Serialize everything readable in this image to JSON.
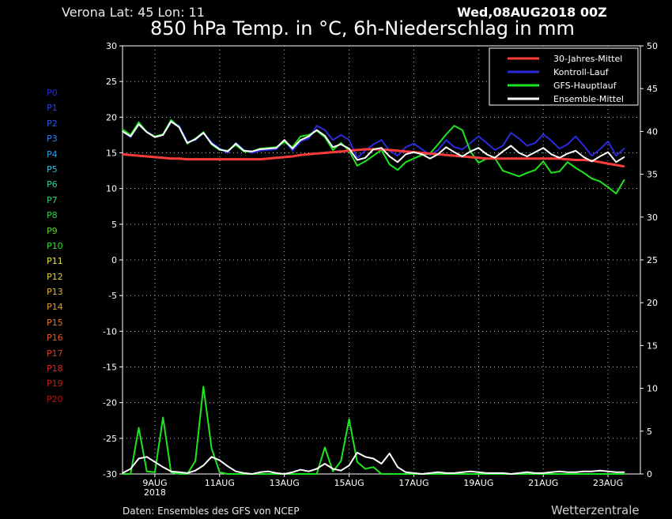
{
  "header": {
    "location": "Verona   Lat: 45 Lon: 11",
    "run": "Wed,08AUG2018 00Z",
    "title": "850 hPa Temp. in °C, 6h-Niederschlag in mm"
  },
  "footer": {
    "source": "Daten: Ensembles des GFS von NCEP",
    "brand": "Wetterzentrale"
  },
  "members": [
    {
      "label": "P0",
      "color": "#2a2adc"
    },
    {
      "label": "P1",
      "color": "#2a3ae6"
    },
    {
      "label": "P2",
      "color": "#2a5ae6"
    },
    {
      "label": "P3",
      "color": "#2a82e6"
    },
    {
      "label": "P4",
      "color": "#2aa0e6"
    },
    {
      "label": "P5",
      "color": "#2ac0d2"
    },
    {
      "label": "P6",
      "color": "#2ad2a0"
    },
    {
      "label": "P7",
      "color": "#2ad278"
    },
    {
      "label": "P8",
      "color": "#2ad250"
    },
    {
      "label": "P9",
      "color": "#5ad22a"
    },
    {
      "label": "P10",
      "color": "#2ae62a"
    },
    {
      "label": "P11",
      "color": "#e6e62a"
    },
    {
      "label": "P12",
      "color": "#e6d22a"
    },
    {
      "label": "P13",
      "color": "#e6b42a"
    },
    {
      "label": "P14",
      "color": "#e6962a"
    },
    {
      "label": "P15",
      "color": "#e6782a"
    },
    {
      "label": "P16",
      "color": "#e65a2a"
    },
    {
      "label": "P17",
      "color": "#dc3c2a"
    },
    {
      "label": "P18",
      "color": "#d22a2a"
    },
    {
      "label": "P19",
      "color": "#c81e1e"
    },
    {
      "label": "P20",
      "color": "#b41414"
    }
  ],
  "chart_data": {
    "type": "line",
    "x_ticks": [
      "9AUG",
      "11AUG",
      "13AUG",
      "15AUG",
      "17AUG",
      "19AUG",
      "21AUG",
      "23AUG"
    ],
    "x_tick_year": "2018",
    "left_axis": {
      "ylim": [
        -30,
        30
      ],
      "ticks": [
        30,
        25,
        20,
        15,
        10,
        5,
        0,
        -5,
        -10,
        -15,
        -20,
        -25,
        -30
      ]
    },
    "right_axis": {
      "ylim": [
        0,
        50
      ],
      "ticks": [
        50,
        45,
        40,
        35,
        30,
        25,
        20,
        15,
        10,
        5,
        0
      ]
    },
    "grid": true,
    "legend_position": "top-right",
    "x_start": "2018-08-08 00Z",
    "x_step_hours": 6,
    "series": [
      {
        "name": "30-Jahres-Mittel",
        "color": "#ff3c3c",
        "axis": "left",
        "values": [
          14.8,
          14.7,
          14.6,
          14.5,
          14.4,
          14.3,
          14.2,
          14.2,
          14.1,
          14.1,
          14.1,
          14.1,
          14.1,
          14.1,
          14.1,
          14.1,
          14.1,
          14.1,
          14.2,
          14.3,
          14.4,
          14.5,
          14.7,
          14.8,
          14.9,
          15.0,
          15.1,
          15.2,
          15.3,
          15.4,
          15.5,
          15.5,
          15.5,
          15.4,
          15.3,
          15.2,
          15.1,
          15.0,
          14.9,
          14.8,
          14.7,
          14.6,
          14.5,
          14.4,
          14.3,
          14.2,
          14.2,
          14.2,
          14.2,
          14.2,
          14.2,
          14.2,
          14.2,
          14.2,
          14.2,
          14.1,
          14.0,
          14.0,
          13.9,
          13.7,
          13.5,
          13.3,
          13.1
        ]
      },
      {
        "name": "Kontroll-Lauf",
        "color": "#2a2adc",
        "axis": "left",
        "values": [
          18.0,
          17.2,
          19.0,
          18.0,
          17.3,
          17.5,
          19.3,
          18.8,
          16.5,
          16.8,
          17.8,
          16.5,
          15.6,
          15.0,
          16.4,
          15.4,
          15.0,
          15.3,
          15.4,
          15.5,
          16.7,
          15.3,
          16.6,
          17.0,
          18.8,
          18.2,
          16.8,
          17.5,
          16.8,
          14.3,
          15.3,
          16.2,
          16.8,
          15.3,
          14.6,
          15.8,
          16.3,
          15.5,
          14.7,
          15.4,
          16.8,
          15.8,
          15.5,
          16.4,
          17.3,
          16.4,
          15.4,
          16.0,
          17.8,
          17.0,
          16.0,
          16.4,
          17.6,
          16.7,
          15.6,
          16.2,
          17.3,
          16.0,
          14.6,
          15.5,
          16.6,
          14.6,
          15.6
        ]
      },
      {
        "name": "GFS-Hauptlauf",
        "color": "#1ee61e",
        "axis": "left",
        "values": [
          18.3,
          17.5,
          19.3,
          17.9,
          17.3,
          17.6,
          19.6,
          18.6,
          16.3,
          17.0,
          17.9,
          16.2,
          15.4,
          15.3,
          16.1,
          15.2,
          15.2,
          15.6,
          15.7,
          15.8,
          16.5,
          15.8,
          17.3,
          17.5,
          18.1,
          17.2,
          15.4,
          16.4,
          15.3,
          13.2,
          13.8,
          14.6,
          15.4,
          13.4,
          12.6,
          13.7,
          14.2,
          14.7,
          14.9,
          16.2,
          17.6,
          18.8,
          18.2,
          15.2,
          13.6,
          14.2,
          14.3,
          12.5,
          12.1,
          11.7,
          12.2,
          12.6,
          13.8,
          12.2,
          12.4,
          13.7,
          12.9,
          12.2,
          11.4,
          11.0,
          10.2,
          9.3,
          11.2
        ]
      },
      {
        "name": "Ensemble-Mittel",
        "color": "#ffffff",
        "axis": "left",
        "values": [
          18.0,
          17.3,
          19.0,
          17.9,
          17.2,
          17.5,
          19.4,
          18.6,
          16.4,
          16.9,
          17.8,
          16.3,
          15.5,
          15.2,
          16.3,
          15.3,
          15.2,
          15.5,
          15.6,
          15.7,
          16.8,
          15.6,
          16.8,
          17.3,
          18.2,
          17.4,
          15.8,
          16.2,
          15.6,
          14.0,
          14.3,
          15.5,
          15.7,
          14.5,
          13.7,
          14.8,
          15.1,
          14.8,
          14.2,
          14.8,
          15.8,
          15.1,
          14.5,
          15.2,
          15.7,
          14.8,
          14.3,
          15.2,
          16.0,
          15.0,
          14.5,
          15.1,
          15.7,
          14.8,
          14.3,
          14.9,
          15.3,
          14.4,
          13.8,
          14.5,
          15.1,
          13.7,
          14.4
        ]
      },
      {
        "name": "Niederschlag Mittel",
        "color": "#ffffff",
        "axis": "right",
        "values": [
          0.1,
          0.6,
          1.8,
          2.0,
          1.4,
          0.8,
          0.3,
          0.2,
          0.1,
          0.4,
          1.0,
          2.0,
          1.6,
          0.9,
          0.3,
          0.1,
          0.0,
          0.2,
          0.3,
          0.1,
          0.0,
          0.2,
          0.5,
          0.3,
          0.6,
          1.2,
          0.6,
          0.4,
          1.0,
          2.5,
          2.0,
          1.8,
          1.2,
          2.4,
          0.8,
          0.2,
          0.1,
          0.0,
          0.1,
          0.2,
          0.1,
          0.1,
          0.2,
          0.3,
          0.2,
          0.1,
          0.1,
          0.1,
          0.0,
          0.1,
          0.2,
          0.1,
          0.1,
          0.2,
          0.3,
          0.2,
          0.2,
          0.3,
          0.3,
          0.4,
          0.3,
          0.2,
          0.2
        ]
      },
      {
        "name": "Niederschlag GFS",
        "color": "#1ee61e",
        "axis": "right",
        "values": [
          0.0,
          0.0,
          5.4,
          0.3,
          0.2,
          6.6,
          0.2,
          0.0,
          0.0,
          1.5,
          10.2,
          3.0,
          0.2,
          0.0,
          0.0,
          0.0,
          0.0,
          0.0,
          0.0,
          0.0,
          0.0,
          0.0,
          0.0,
          0.0,
          0.0,
          3.1,
          0.3,
          1.5,
          6.4,
          1.4,
          0.6,
          0.8,
          0.0,
          0.0,
          0.0,
          0.0,
          0.0,
          0.0,
          0.0,
          0.0,
          0.0,
          0.0,
          0.0,
          0.0,
          0.0,
          0.0,
          0.0,
          0.0,
          0.0,
          0.0,
          0.0,
          0.0,
          0.0,
          0.0,
          0.0,
          0.0,
          0.0,
          0.0,
          0.0,
          0.0,
          0.0,
          0.0,
          0.0
        ]
      }
    ]
  }
}
